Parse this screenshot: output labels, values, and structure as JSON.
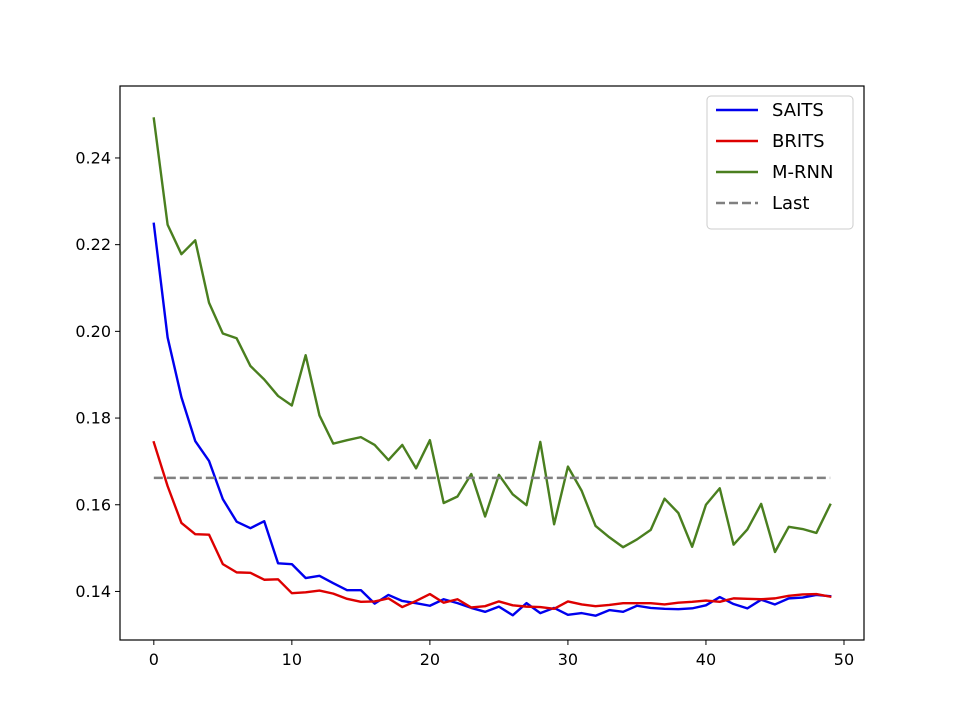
{
  "chart_data": {
    "type": "line",
    "title": "",
    "xlabel": "",
    "ylabel": "",
    "xlim": [
      -2.45,
      51.45
    ],
    "ylim": [
      0.1288,
      0.2566
    ],
    "xticks": [
      0,
      10,
      20,
      30,
      40,
      50
    ],
    "yticks": [
      0.14,
      0.16,
      0.18,
      0.2,
      0.22,
      0.24
    ],
    "xtick_labels": [
      "0",
      "10",
      "20",
      "30",
      "40",
      "50"
    ],
    "ytick_labels": [
      "0.14",
      "0.16",
      "0.18",
      "0.20",
      "0.22",
      "0.24"
    ],
    "grid": false,
    "legend_position": "upper right",
    "x": [
      0,
      1,
      2,
      3,
      4,
      5,
      6,
      7,
      8,
      9,
      10,
      11,
      12,
      13,
      14,
      15,
      16,
      17,
      18,
      19,
      20,
      21,
      22,
      23,
      24,
      25,
      26,
      27,
      28,
      29,
      30,
      31,
      32,
      33,
      34,
      35,
      36,
      37,
      38,
      39,
      40,
      41,
      42,
      43,
      44,
      45,
      46,
      47,
      48,
      49
    ],
    "series": [
      {
        "name": "SAITS",
        "color": "#0000ee",
        "style": "solid",
        "values": [
          0.2248,
          0.1986,
          0.1848,
          0.1747,
          0.1701,
          0.1613,
          0.1561,
          0.1546,
          0.1562,
          0.1465,
          0.1463,
          0.1431,
          0.1436,
          0.1419,
          0.1403,
          0.1403,
          0.1372,
          0.1392,
          0.1378,
          0.1373,
          0.1367,
          0.1382,
          0.1373,
          0.1362,
          0.1353,
          0.1365,
          0.1345,
          0.1373,
          0.135,
          0.1362,
          0.1346,
          0.135,
          0.1344,
          0.1357,
          0.1353,
          0.1367,
          0.1362,
          0.136,
          0.1359,
          0.1361,
          0.1368,
          0.1387,
          0.1371,
          0.1361,
          0.1381,
          0.137,
          0.1384,
          0.1386,
          0.1392,
          0.1389
        ]
      },
      {
        "name": "BRITS",
        "color": "#dd0000",
        "style": "solid",
        "values": [
          0.1744,
          0.1643,
          0.1558,
          0.1532,
          0.1531,
          0.1463,
          0.1444,
          0.1443,
          0.1427,
          0.1428,
          0.1396,
          0.1398,
          0.1402,
          0.1395,
          0.1383,
          0.1376,
          0.1377,
          0.1384,
          0.1364,
          0.1378,
          0.1394,
          0.1374,
          0.1382,
          0.1363,
          0.1366,
          0.1377,
          0.1368,
          0.1365,
          0.1364,
          0.136,
          0.1377,
          0.137,
          0.1366,
          0.1369,
          0.1373,
          0.1373,
          0.1373,
          0.137,
          0.1374,
          0.1376,
          0.1379,
          0.1376,
          0.1384,
          0.1383,
          0.1382,
          0.1384,
          0.139,
          0.1393,
          0.1394,
          0.1388
        ]
      },
      {
        "name": "M-RNN",
        "color": "#4a7f1f",
        "style": "solid",
        "values": [
          0.2491,
          0.2246,
          0.2178,
          0.221,
          0.2066,
          0.1995,
          0.1984,
          0.192,
          0.1889,
          0.1851,
          0.1829,
          0.1945,
          0.1806,
          0.1741,
          0.1749,
          0.1756,
          0.1738,
          0.1703,
          0.1738,
          0.1684,
          0.1749,
          0.1604,
          0.1619,
          0.1671,
          0.1573,
          0.1669,
          0.1624,
          0.1599,
          0.1745,
          0.1555,
          0.1688,
          0.1632,
          0.1551,
          0.1525,
          0.1502,
          0.152,
          0.1542,
          0.1614,
          0.1581,
          0.1503,
          0.16,
          0.1638,
          0.1508,
          0.1543,
          0.1602,
          0.1491,
          0.1549,
          0.1544,
          0.1535,
          0.16
        ]
      },
      {
        "name": "Last",
        "color": "#808080",
        "style": "dashed",
        "constant": 0.1662
      }
    ]
  }
}
